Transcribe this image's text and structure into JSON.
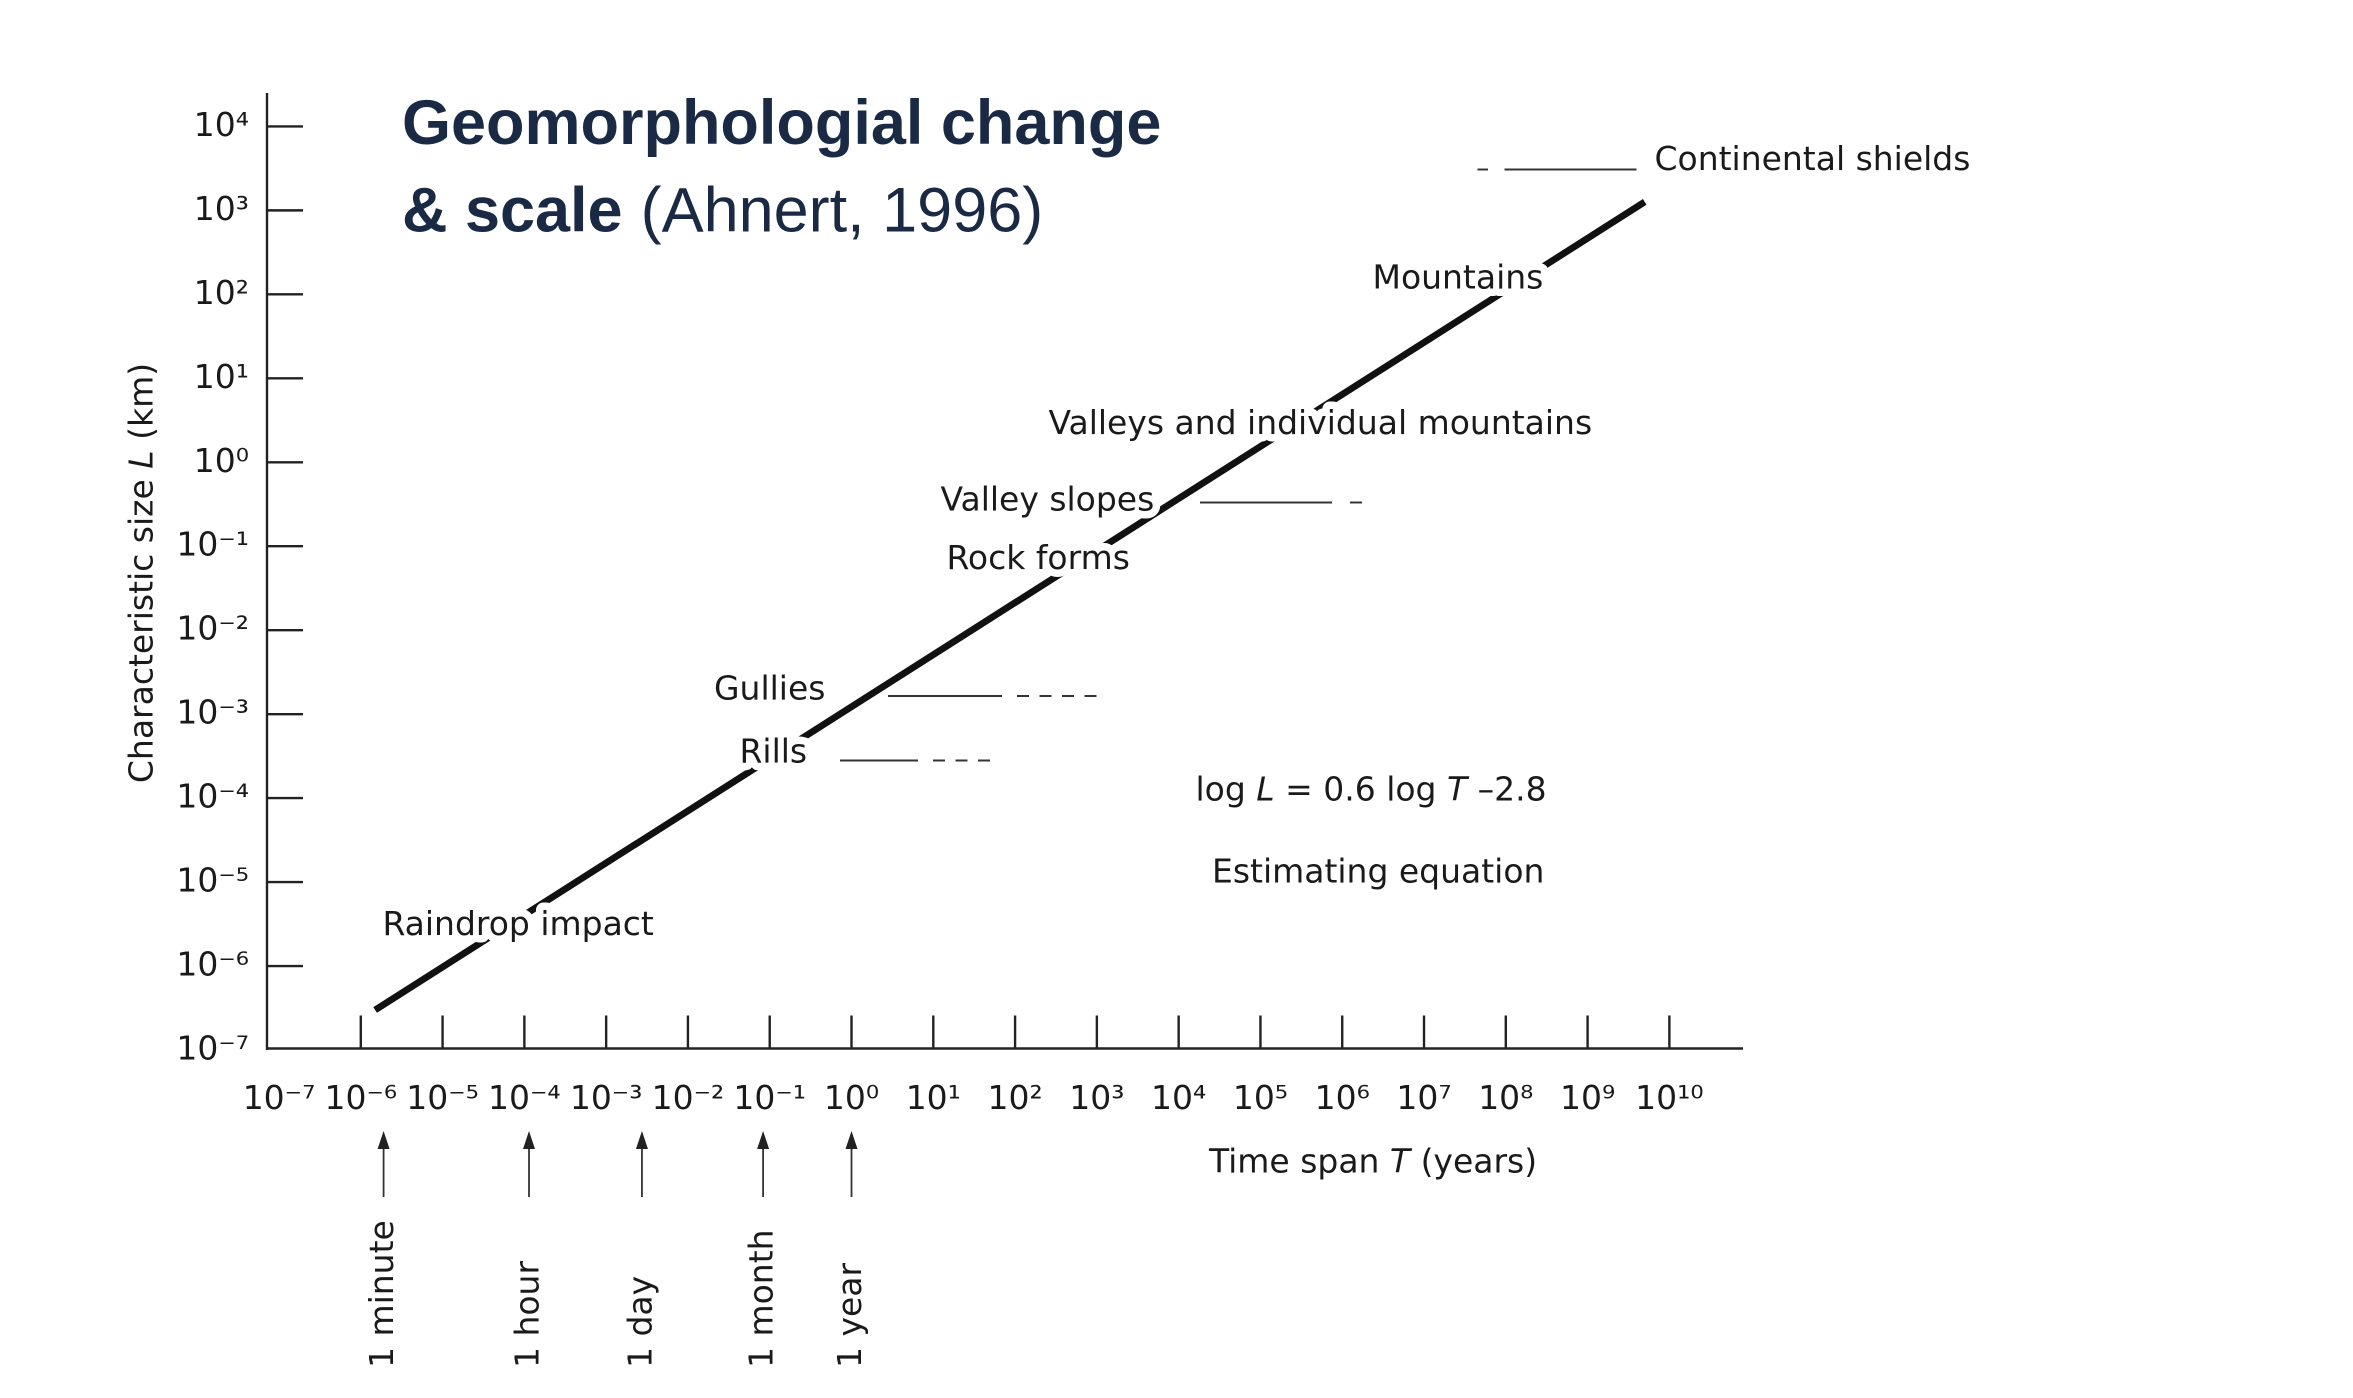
{
  "chart_data": {
    "type": "line",
    "title_parts": [
      "Geomorphologial change",
      "& scale",
      "(Ahnert, 1996)"
    ],
    "xlabel_parts": [
      "Time span ",
      "T",
      " (years)"
    ],
    "ylabel_parts": [
      "Characteristic size ",
      "L",
      " (km)"
    ],
    "log_x": true,
    "log_y": true,
    "xlim": [
      1e-07,
      70000000000.0
    ],
    "ylim": [
      1e-07,
      25000
    ],
    "xticks": [
      {
        "value": 1e-07,
        "label": "10⁻⁷"
      },
      {
        "value": 1e-06,
        "label": "10⁻⁶"
      },
      {
        "value": 1e-05,
        "label": "10⁻⁵"
      },
      {
        "value": 0.0001,
        "label": "10⁻⁴"
      },
      {
        "value": 0.001,
        "label": "10⁻³"
      },
      {
        "value": 0.01,
        "label": "10⁻²"
      },
      {
        "value": 0.1,
        "label": "10⁻¹"
      },
      {
        "value": 1,
        "label": "10⁰"
      },
      {
        "value": 10,
        "label": "10¹"
      },
      {
        "value": 100,
        "label": "10²"
      },
      {
        "value": 1000,
        "label": "10³"
      },
      {
        "value": 10000,
        "label": "10⁴"
      },
      {
        "value": 100000,
        "label": "10⁵"
      },
      {
        "value": 1000000,
        "label": "10⁶"
      },
      {
        "value": 10000000,
        "label": "10⁷"
      },
      {
        "value": 100000000,
        "label": "10⁸"
      },
      {
        "value": 1000000000,
        "label": "10⁹"
      },
      {
        "value": 10000000000,
        "label": "10¹⁰"
      }
    ],
    "yticks": [
      {
        "value": 1e-07,
        "label": "10⁻⁷"
      },
      {
        "value": 1e-06,
        "label": "10⁻⁶"
      },
      {
        "value": 1e-05,
        "label": "10⁻⁵"
      },
      {
        "value": 0.0001,
        "label": "10⁻⁴"
      },
      {
        "value": 0.001,
        "label": "10⁻³"
      },
      {
        "value": 0.01,
        "label": "10⁻²"
      },
      {
        "value": 0.1,
        "label": "10⁻¹"
      },
      {
        "value": 1,
        "label": "10⁰"
      },
      {
        "value": 10,
        "label": "10¹"
      },
      {
        "value": 100,
        "label": "10²"
      },
      {
        "value": 1000,
        "label": "10³"
      },
      {
        "value": 10000,
        "label": "10⁴"
      }
    ],
    "x": [
      1.5e-06,
      5000000000
    ],
    "values": [
      3e-07,
      1260
    ],
    "color": "#111111",
    "annotations": [
      "Raindrop impact",
      "Rills",
      "Gullies",
      "Rock forms",
      "Valley slopes",
      "Valleys and individual mountains",
      "Mountains",
      "Continental shields"
    ],
    "equation_parts": [
      "log ",
      "L",
      " = 0.6 log ",
      "T",
      " –2.8"
    ],
    "equation_note": "Estimating equation",
    "time_markers": [
      {
        "label": "1 minute",
        "value": 1.9e-06
      },
      {
        "label": "1 hour",
        "value": 0.000114
      },
      {
        "label": "1 day",
        "value": 0.00274
      },
      {
        "label": "1 month",
        "value": 0.083
      },
      {
        "label": "1 year",
        "value": 1
      }
    ]
  }
}
